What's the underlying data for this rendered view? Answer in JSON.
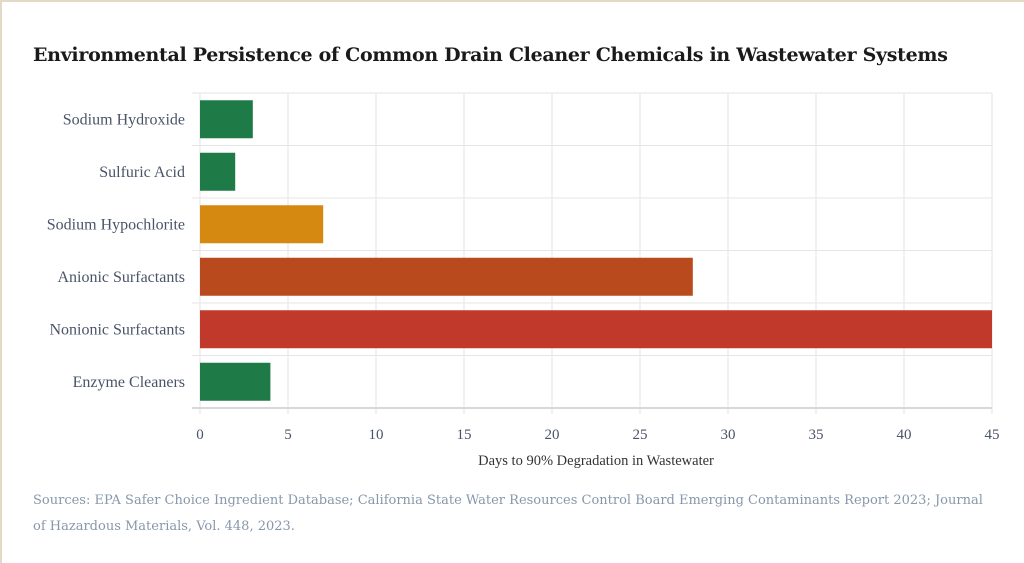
{
  "chart_data": {
    "type": "bar",
    "orientation": "horizontal",
    "title": "Environmental Persistence of Common Drain Cleaner Chemicals in Wastewater Systems",
    "categories": [
      "Sodium Hydroxide",
      "Sulfuric Acid",
      "Sodium Hypochlorite",
      "Anionic Surfactants",
      "Nonionic Surfactants",
      "Enzyme Cleaners"
    ],
    "values": [
      3,
      2,
      7,
      28,
      45,
      4
    ],
    "colors": [
      "#1e7a46",
      "#1e7a46",
      "#d68910",
      "#b94a1e",
      "#c0392b",
      "#1e7a46"
    ],
    "xlabel": "Days to 90% Degradation in Wastewater",
    "ylabel": "",
    "xlim": [
      0,
      45
    ],
    "xticks": [
      0,
      5,
      10,
      15,
      20,
      25,
      30,
      35,
      40,
      45
    ],
    "grid": true
  },
  "source": "Sources: EPA Safer Choice Ingredient Database; California State Water Resources Control Board Emerging Contaminants Report 2023; Journal of Hazardous Materials, Vol. 448, 2023."
}
